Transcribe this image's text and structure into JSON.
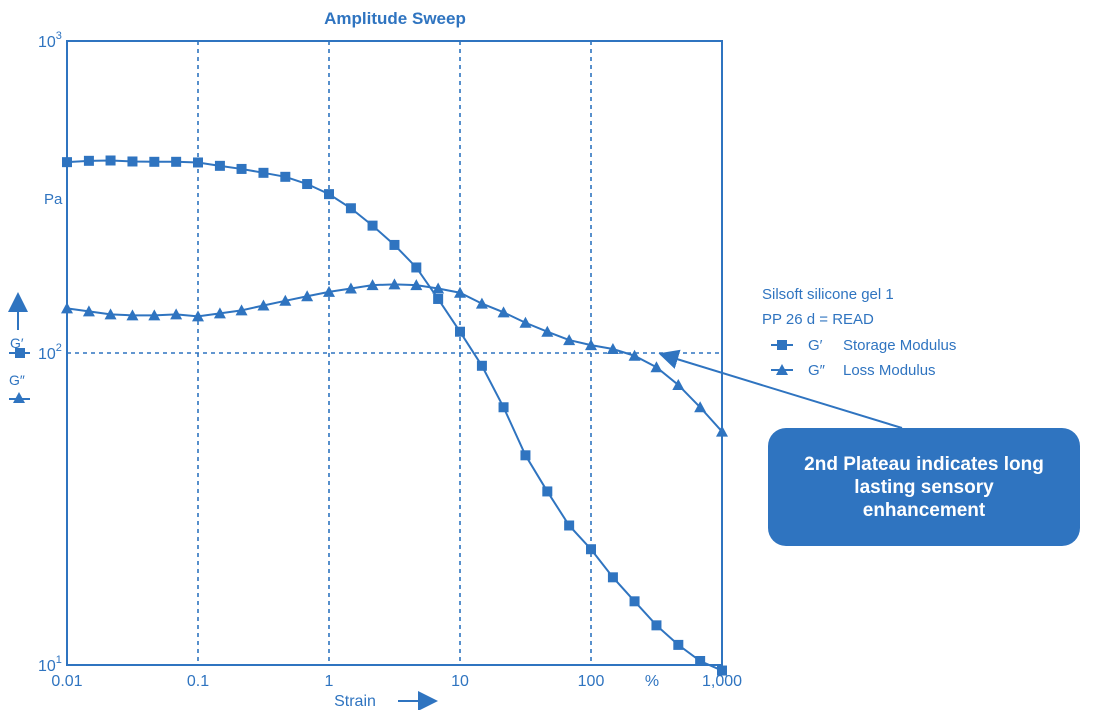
{
  "chart_data": {
    "type": "line",
    "title": "Amplitude Sweep",
    "xlabel": "Strain",
    "x_unit": "%",
    "ylabel_unit": "Pa",
    "y_axis_labels": [
      "G′",
      "G″"
    ],
    "xscale": "log",
    "yscale": "log",
    "xlim": [
      0.01,
      1000
    ],
    "ylim": [
      10,
      1000
    ],
    "x_ticks": [
      "0.01",
      "0.1",
      "1",
      "10",
      "100",
      "1,000"
    ],
    "y_ticks": [
      {
        "base": "10",
        "exp": "1"
      },
      {
        "base": "10",
        "exp": "2"
      },
      {
        "base": "10",
        "exp": "3"
      }
    ],
    "grid": "dotted at decades",
    "legend_title": [
      "Silsoft silicone gel 1",
      "PP 26 d = READ"
    ],
    "legend_position": "right",
    "series": [
      {
        "name": "Storage Modulus",
        "symbol": "G′",
        "marker": "square",
        "x": [
          0.01,
          0.0147,
          0.0215,
          0.0316,
          0.0464,
          0.0681,
          0.1,
          0.147,
          0.215,
          0.316,
          0.464,
          0.681,
          1.0,
          1.47,
          2.15,
          3.16,
          4.64,
          6.81,
          10.0,
          14.7,
          21.5,
          31.6,
          46.4,
          68.1,
          100,
          147,
          215,
          316,
          464,
          681,
          1000
        ],
        "y": [
          409,
          413,
          414,
          411,
          410,
          410,
          408,
          398,
          389,
          378,
          367,
          348,
          323,
          291,
          256,
          222,
          188,
          149,
          117,
          91,
          67,
          47,
          36,
          28,
          23.5,
          19.1,
          16.0,
          13.4,
          11.6,
          10.3,
          9.6
        ]
      },
      {
        "name": "Loss Modulus",
        "symbol": "G″",
        "marker": "triangle",
        "x": [
          0.01,
          0.0147,
          0.0215,
          0.0316,
          0.0464,
          0.0681,
          0.1,
          0.147,
          0.215,
          0.316,
          0.464,
          0.681,
          1.0,
          1.47,
          2.15,
          3.16,
          4.64,
          6.81,
          10.0,
          14.7,
          21.5,
          31.6,
          46.4,
          68.1,
          100,
          147,
          215,
          316,
          464,
          681,
          1000
        ],
        "y": [
          139,
          136,
          133,
          132,
          132,
          133,
          131,
          134,
          137,
          142,
          147,
          152,
          157,
          161,
          165,
          166,
          165,
          161,
          156,
          144,
          135,
          125,
          117,
          110,
          106,
          103,
          98,
          90,
          79,
          67,
          56
        ]
      }
    ],
    "reference_line": {
      "y": 100,
      "style": "dotted"
    },
    "annotation": {
      "text": "2nd Plateau indicates long lasting sensory enhancement",
      "points_to": {
        "x": 316,
        "y": 100
      }
    }
  },
  "colors": {
    "primary": "#2f74c0",
    "background": "#ffffff",
    "callout_text": "#ffffff"
  }
}
